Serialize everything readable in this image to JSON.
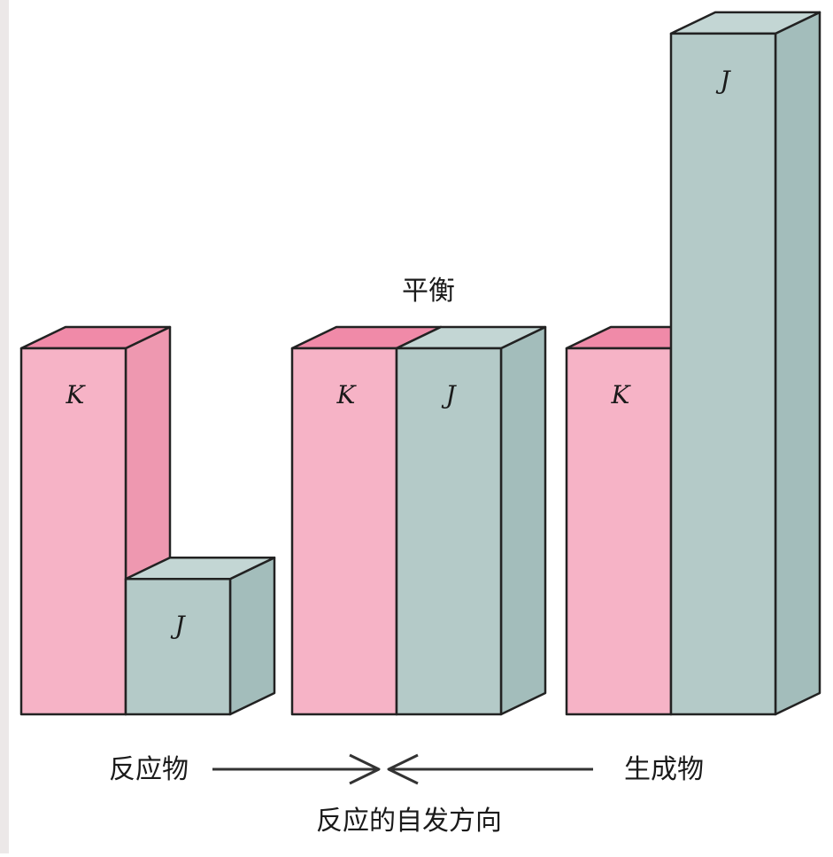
{
  "colors": {
    "K_front": "#f6b3c6",
    "K_side": "#ee98b0",
    "K_top": "#f08aa8",
    "J_front": "#b4cac8",
    "J_side": "#a3bdbb",
    "J_top": "#c3d6d4",
    "edge": "#222222",
    "arrow": "#333333"
  },
  "groups": [
    {
      "bars": [
        {
          "label": "K",
          "level": 1.0
        },
        {
          "label": "J",
          "level": 0.37
        }
      ]
    },
    {
      "title": "平衡",
      "bars": [
        {
          "label": "K",
          "level": 1.0
        },
        {
          "label": "J",
          "level": 1.0
        }
      ]
    },
    {
      "bars": [
        {
          "label": "K",
          "level": 1.0
        },
        {
          "label": "J",
          "level": 1.86
        }
      ]
    }
  ],
  "footer": {
    "left_label": "反应物",
    "right_label": "生成物",
    "caption": "反应的自发方向"
  }
}
